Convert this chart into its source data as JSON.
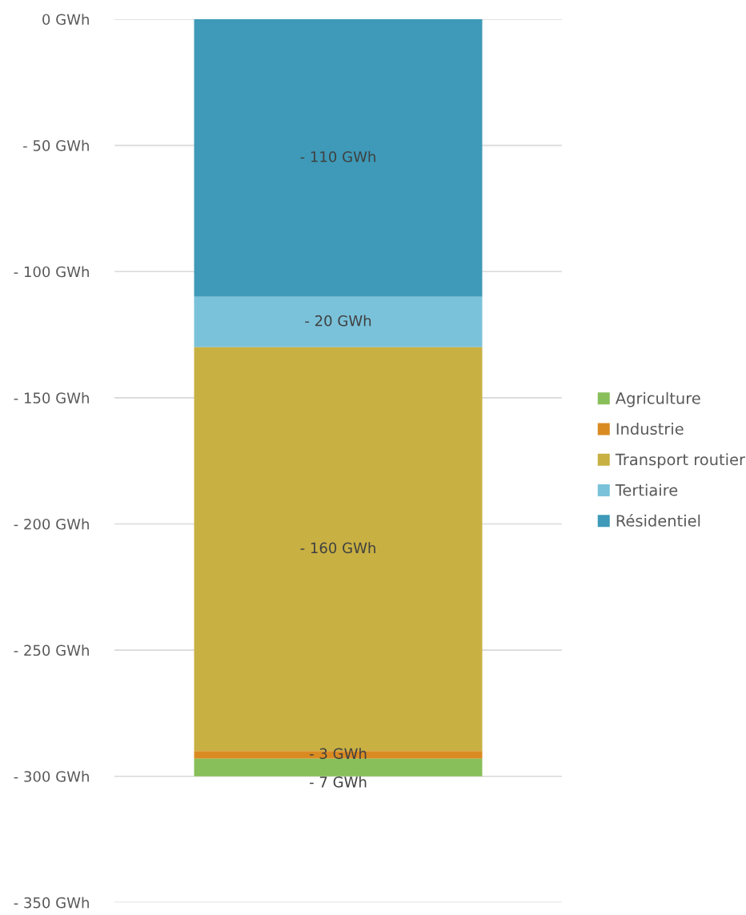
{
  "chart_data": {
    "type": "bar",
    "stacked": true,
    "categories": [
      null
    ],
    "series": [
      {
        "name": "Résidentiel",
        "color": "#3e9ab8",
        "values": [
          -110
        ],
        "value_labels": [
          "- 110 GWh"
        ]
      },
      {
        "name": "Tertiaire",
        "color": "#7ac2da",
        "values": [
          -20
        ],
        "value_labels": [
          "- 20 GWh"
        ]
      },
      {
        "name": "Transport routier",
        "color": "#c8b043",
        "values": [
          -160
        ],
        "value_labels": [
          "- 160 GWh"
        ]
      },
      {
        "name": "Industrie",
        "color": "#d98b22",
        "values": [
          -3
        ],
        "value_labels": [
          "- 3 GWh"
        ]
      },
      {
        "name": "Agriculture",
        "color": "#88bf5a",
        "values": [
          -7
        ],
        "value_labels": [
          "- 7 GWh"
        ]
      }
    ],
    "ylim": [
      -350,
      0
    ],
    "yticks": [
      {
        "value": 0,
        "label": "0 GWh"
      },
      {
        "value": -50,
        "label": "- 50 GWh"
      },
      {
        "value": -100,
        "label": "- 100 GWh"
      },
      {
        "value": -150,
        "label": "- 150 GWh"
      },
      {
        "value": -200,
        "label": "- 200 GWh"
      },
      {
        "value": -250,
        "label": "- 250 GWh"
      },
      {
        "value": -300,
        "label": "- 300 GWh"
      },
      {
        "value": -350,
        "label": "- 350 GWh"
      }
    ],
    "grid": "y",
    "legend": "right"
  }
}
